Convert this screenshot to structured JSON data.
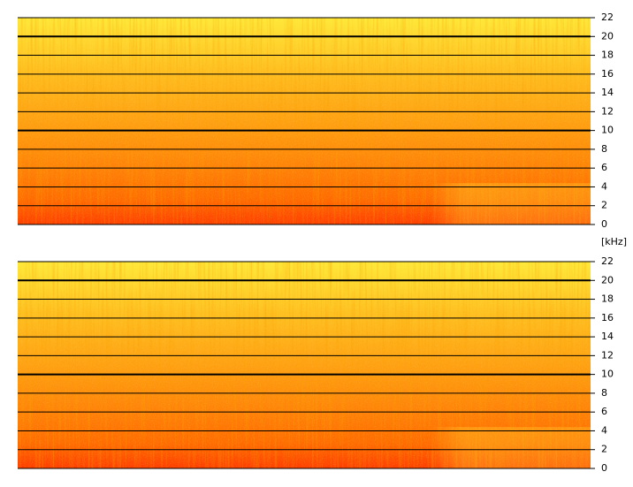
{
  "chart_data": [
    {
      "type": "spectrogram",
      "ylabel": "[kHz]",
      "ylim": [
        0,
        22
      ],
      "yticks": [
        0,
        2,
        4,
        6,
        8,
        10,
        12,
        14,
        16,
        18,
        20,
        22
      ],
      "grid": true,
      "major_grid": [
        10,
        20
      ]
    },
    {
      "type": "spectrogram",
      "ylim": [
        0,
        22
      ],
      "yticks": [
        0,
        2,
        4,
        6,
        8,
        10,
        12,
        14,
        16,
        18,
        20,
        22
      ],
      "grid": true,
      "major_grid": [
        10,
        20
      ]
    }
  ]
}
